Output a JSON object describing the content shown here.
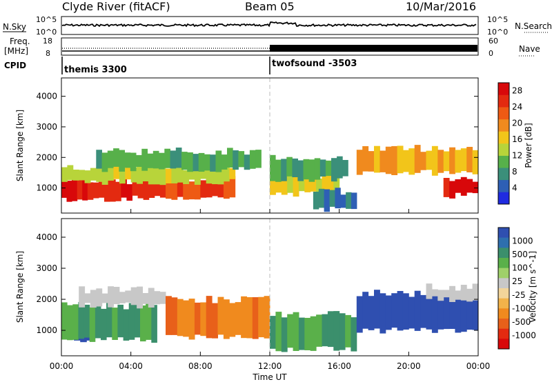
{
  "header": {
    "station": "Clyde River (fitACF)",
    "beam": "Beam 05",
    "date": "10/Mar/2016"
  },
  "noise_panel": {
    "left_label": "N.Sky",
    "right_label": "N.Search",
    "left_ticks": [
      "10^5",
      "10^0"
    ],
    "right_ticks": [
      "10^5",
      "10^0"
    ]
  },
  "freq_panel": {
    "left_label_1": "Freq.",
    "left_label_2": "[MHz]",
    "right_label": "Nave",
    "left_ticks": [
      "18",
      "8"
    ],
    "right_ticks": [
      "60",
      "0"
    ]
  },
  "cpid_panel": {
    "label": "CPID",
    "modes": [
      {
        "name": "themis 3300",
        "start_hour": 0
      },
      {
        "name": "twofsound -3503",
        "start_hour": 12
      }
    ]
  },
  "chart_data": [
    {
      "type": "heatmap",
      "title": "",
      "xlabel": "Time UT",
      "ylabel": "Slant Range [km]",
      "x_ticks": [
        "00:00",
        "04:00",
        "08:00",
        "12:00",
        "16:00",
        "20:00",
        "00:00"
      ],
      "xlim_hours": [
        0,
        24
      ],
      "y_ticks": [
        1000,
        2000,
        3000,
        4000
      ],
      "ylim": [
        180,
        4600
      ],
      "colorbar": {
        "label": "Power [dB]",
        "ticks": [
          4,
          8,
          12,
          16,
          20,
          24,
          28
        ],
        "range": [
          0,
          30
        ],
        "colors": [
          "#1f2be0",
          "#2e5fb5",
          "#3b8f7a",
          "#57b04a",
          "#b8d43a",
          "#f2c51a",
          "#f08a1e",
          "#ee5a14",
          "#e32a10",
          "#d8080a"
        ]
      },
      "regions": [
        {
          "t0": 0.0,
          "t1": 1.5,
          "r_low": 600,
          "r_high": 1350,
          "value": 28
        },
        {
          "t0": 1.5,
          "t1": 6.0,
          "r_low": 650,
          "r_high": 1250,
          "value": 26
        },
        {
          "t0": 6.0,
          "t1": 10.0,
          "r_low": 700,
          "r_high": 1300,
          "value": 24
        },
        {
          "t0": 0.0,
          "t1": 10.0,
          "r_low": 1200,
          "r_high": 1700,
          "value": 14
        },
        {
          "t0": 2.0,
          "t1": 11.5,
          "r_low": 1600,
          "r_high": 2200,
          "value": 10
        },
        {
          "t0": 12.0,
          "t1": 16.0,
          "r_low": 800,
          "r_high": 1400,
          "value": 16
        },
        {
          "t0": 12.0,
          "t1": 16.5,
          "r_low": 1300,
          "r_high": 2000,
          "value": 9
        },
        {
          "t0": 14.5,
          "t1": 17.0,
          "r_low": 300,
          "r_high": 900,
          "value": 6
        },
        {
          "t0": 17.0,
          "t1": 24.0,
          "r_low": 1500,
          "r_high": 2300,
          "value": 18
        },
        {
          "t0": 22.0,
          "t1": 24.0,
          "r_low": 750,
          "r_high": 1300,
          "value": 28
        }
      ]
    },
    {
      "type": "heatmap",
      "title": "",
      "xlabel": "Time UT",
      "ylabel": "Slant Range [km]",
      "x_ticks": [
        "00:00",
        "04:00",
        "08:00",
        "12:00",
        "16:00",
        "20:00",
        "00:00"
      ],
      "xlim_hours": [
        0,
        24
      ],
      "y_ticks": [
        1000,
        2000,
        3000,
        4000
      ],
      "ylim": [
        180,
        4600
      ],
      "colorbar": {
        "label": "Velocity [m s^-1]",
        "ticks": [
          "1000",
          "500",
          "100",
          "25",
          "-25",
          "-100",
          "-500",
          "-1000"
        ],
        "colors": [
          "#2f4fb0",
          "#2e6fae",
          "#3b8f6c",
          "#5ab04a",
          "#9fd06a",
          "#c8c8c8",
          "#f2d59a",
          "#f2b34a",
          "#f08a1e",
          "#e8601a",
          "#e32a10",
          "#d8080a"
        ]
      },
      "regions": [
        {
          "t0": 0.0,
          "t1": 1.8,
          "r_low": 700,
          "r_high": 1400,
          "value": 1000
        },
        {
          "t0": 0.0,
          "t1": 5.5,
          "r_low": 700,
          "r_high": 1800,
          "value": 100
        },
        {
          "t0": 1.0,
          "t1": 6.0,
          "r_low": 1800,
          "r_high": 2300,
          "value": 0
        },
        {
          "t0": 6.0,
          "t1": 12.0,
          "r_low": 800,
          "r_high": 2000,
          "value": -500
        },
        {
          "t0": 12.0,
          "t1": 17.0,
          "r_low": 400,
          "r_high": 1500,
          "value": 100
        },
        {
          "t0": 17.0,
          "t1": 24.0,
          "r_low": 1000,
          "r_high": 2200,
          "value": 1000
        },
        {
          "t0": 21.0,
          "t1": 24.0,
          "r_low": 2000,
          "r_high": 2400,
          "value": 0
        }
      ]
    }
  ]
}
